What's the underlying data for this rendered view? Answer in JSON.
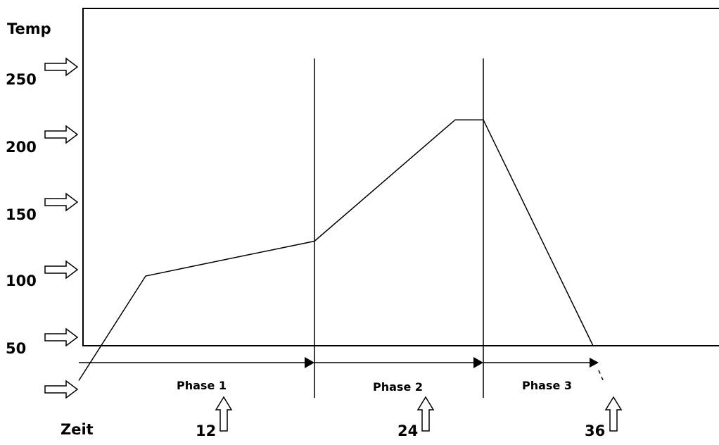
{
  "y_axis": {
    "title": "Temp",
    "ticks": [
      "250",
      "200",
      "150",
      "100",
      "50"
    ]
  },
  "x_axis": {
    "title": "Zeit",
    "ticks": [
      "12",
      "24",
      "36"
    ]
  },
  "phases": [
    "Phase 1",
    "Phase 2",
    "Phase 3"
  ],
  "chart_data": {
    "type": "line",
    "title": "",
    "ylabel": "Temp",
    "xlabel": "Zeit",
    "x_ticks": [
      12,
      24,
      36
    ],
    "y_ticks": [
      50,
      100,
      150,
      200,
      250
    ],
    "series": [
      {
        "x": [
          0,
          4,
          16,
          26,
          28,
          36
        ],
        "y": [
          25,
          100,
          125,
          212,
          212,
          50
        ]
      }
    ],
    "phase_boundaries": [
      16,
      28
    ],
    "phase_labels": [
      "Phase 1",
      "Phase 2",
      "Phase 3"
    ],
    "grid": false,
    "legend": "none"
  }
}
